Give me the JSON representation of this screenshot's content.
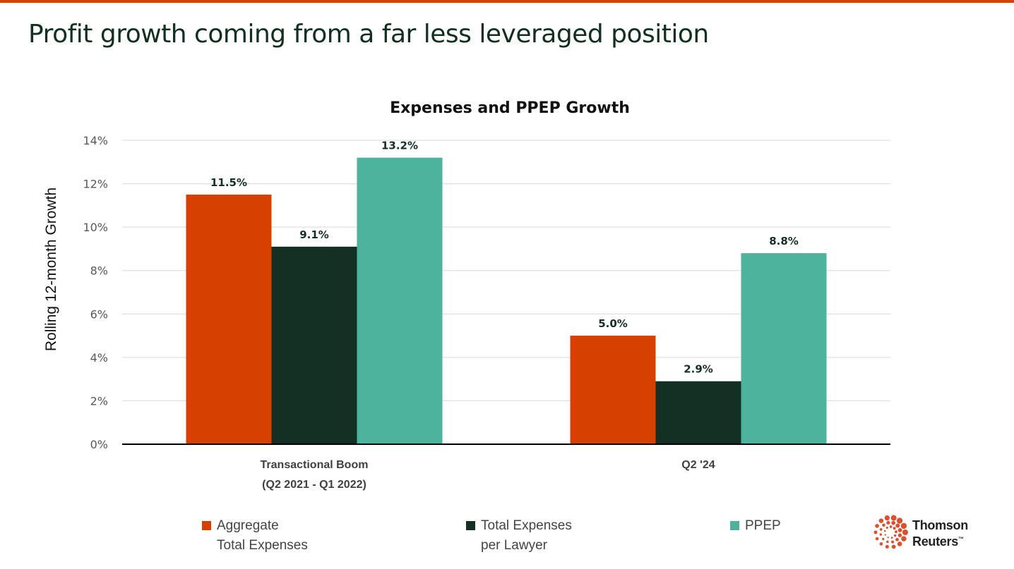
{
  "slide": {
    "title": "Profit growth coming from a far less leveraged position",
    "accent_color": "#D64000"
  },
  "chart_data": {
    "type": "bar",
    "title": "Expenses and PPEP Growth",
    "xlabel": "",
    "ylabel": "Rolling 12-month Growth",
    "ylim": [
      0,
      14
    ],
    "yticks": [
      0,
      2,
      4,
      6,
      8,
      10,
      12,
      14
    ],
    "ytick_labels": [
      "0%",
      "2%",
      "4%",
      "6%",
      "8%",
      "10%",
      "12%",
      "14%"
    ],
    "grid": true,
    "categories": [
      [
        "Transactional Boom",
        "(Q2 2021 - Q1 2022)"
      ],
      [
        "Q2 '24"
      ]
    ],
    "series": [
      {
        "name": "Aggregate Total Expenses",
        "legend_lines": [
          "Aggregate",
          "Total Expenses"
        ],
        "color": "#D64000",
        "values": [
          11.5,
          5.0
        ],
        "labels": [
          "11.5%",
          "5.0%"
        ]
      },
      {
        "name": "Total Expenses per Lawyer",
        "legend_lines": [
          "Total Expenses",
          "per Lawyer"
        ],
        "color": "#143024",
        "values": [
          9.1,
          2.9
        ],
        "labels": [
          "9.1%",
          "2.9%"
        ]
      },
      {
        "name": "PPEP",
        "legend_lines": [
          "PPEP"
        ],
        "color": "#4DB39C",
        "values": [
          13.2,
          8.8
        ],
        "labels": [
          "13.2%",
          "8.8%"
        ]
      }
    ],
    "legend_position": "bottom"
  },
  "logo": {
    "line1": "Thomson",
    "line2": "Reuters",
    "tm": "™",
    "color": "#E04E2E"
  }
}
